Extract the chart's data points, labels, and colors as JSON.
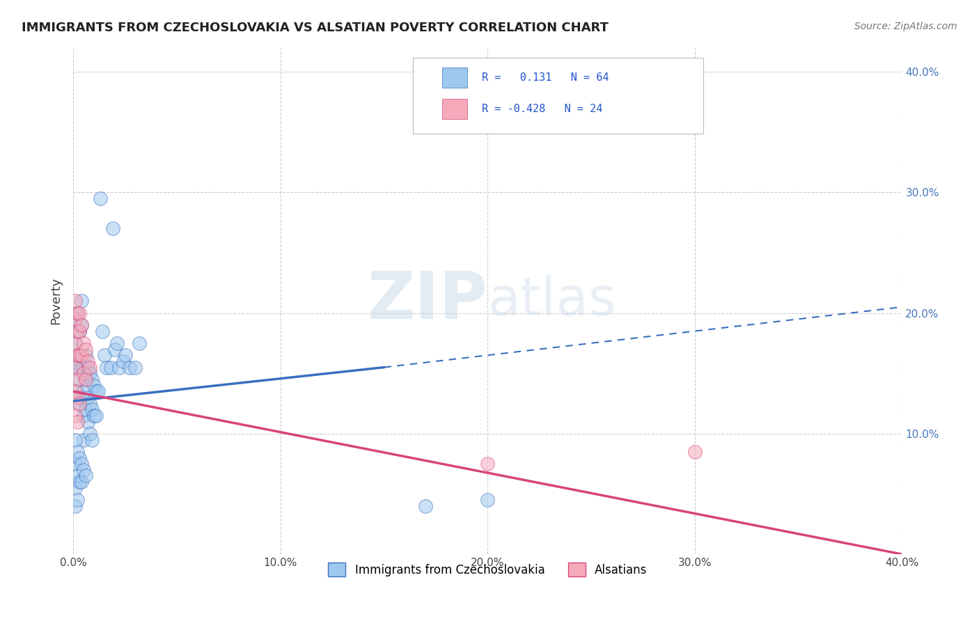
{
  "title": "IMMIGRANTS FROM CZECHOSLOVAKIA VS ALSATIAN POVERTY CORRELATION CHART",
  "source": "Source: ZipAtlas.com",
  "ylabel": "Poverty",
  "xlim": [
    0.0,
    0.4
  ],
  "ylim": [
    0.0,
    0.42
  ],
  "x_ticks": [
    0.0,
    0.1,
    0.2,
    0.3,
    0.4
  ],
  "x_tick_labels": [
    "0.0%",
    "10.0%",
    "20.0%",
    "30.0%",
    "40.0%"
  ],
  "y_ticks": [
    0.1,
    0.2,
    0.3,
    0.4
  ],
  "y_tick_labels": [
    "10.0%",
    "20.0%",
    "30.0%",
    "40.0%"
  ],
  "grid_color": "#cccccc",
  "background_color": "#ffffff",
  "blue_color": "#9EC8EE",
  "pink_color": "#F5AABB",
  "blue_line_color": "#3A6FBF",
  "pink_line_color": "#D94477",
  "blue_scatter": [
    [
      0.001,
      0.195
    ],
    [
      0.001,
      0.175
    ],
    [
      0.001,
      0.155
    ],
    [
      0.002,
      0.2
    ],
    [
      0.002,
      0.185
    ],
    [
      0.002,
      0.155
    ],
    [
      0.002,
      0.135
    ],
    [
      0.003,
      0.185
    ],
    [
      0.003,
      0.165
    ],
    [
      0.003,
      0.145
    ],
    [
      0.003,
      0.125
    ],
    [
      0.004,
      0.21
    ],
    [
      0.004,
      0.19
    ],
    [
      0.004,
      0.155
    ],
    [
      0.004,
      0.13
    ],
    [
      0.005,
      0.155
    ],
    [
      0.005,
      0.135
    ],
    [
      0.005,
      0.115
    ],
    [
      0.005,
      0.095
    ],
    [
      0.006,
      0.165
    ],
    [
      0.006,
      0.145
    ],
    [
      0.006,
      0.12
    ],
    [
      0.007,
      0.155
    ],
    [
      0.007,
      0.13
    ],
    [
      0.007,
      0.11
    ],
    [
      0.008,
      0.15
    ],
    [
      0.008,
      0.125
    ],
    [
      0.008,
      0.1
    ],
    [
      0.009,
      0.145
    ],
    [
      0.009,
      0.12
    ],
    [
      0.009,
      0.095
    ],
    [
      0.01,
      0.14
    ],
    [
      0.01,
      0.115
    ],
    [
      0.011,
      0.135
    ],
    [
      0.011,
      0.115
    ],
    [
      0.012,
      0.135
    ],
    [
      0.013,
      0.295
    ],
    [
      0.014,
      0.185
    ],
    [
      0.015,
      0.165
    ],
    [
      0.016,
      0.155
    ],
    [
      0.018,
      0.155
    ],
    [
      0.019,
      0.27
    ],
    [
      0.02,
      0.17
    ],
    [
      0.021,
      0.175
    ],
    [
      0.022,
      0.155
    ],
    [
      0.024,
      0.16
    ],
    [
      0.025,
      0.165
    ],
    [
      0.027,
      0.155
    ],
    [
      0.03,
      0.155
    ],
    [
      0.032,
      0.175
    ],
    [
      0.001,
      0.095
    ],
    [
      0.001,
      0.075
    ],
    [
      0.001,
      0.055
    ],
    [
      0.001,
      0.04
    ],
    [
      0.002,
      0.085
    ],
    [
      0.002,
      0.065
    ],
    [
      0.002,
      0.045
    ],
    [
      0.003,
      0.08
    ],
    [
      0.003,
      0.06
    ],
    [
      0.004,
      0.075
    ],
    [
      0.004,
      0.06
    ],
    [
      0.005,
      0.07
    ],
    [
      0.006,
      0.065
    ],
    [
      0.17,
      0.04
    ],
    [
      0.2,
      0.045
    ]
  ],
  "pink_scatter": [
    [
      0.001,
      0.21
    ],
    [
      0.001,
      0.195
    ],
    [
      0.001,
      0.175
    ],
    [
      0.001,
      0.155
    ],
    [
      0.002,
      0.2
    ],
    [
      0.002,
      0.185
    ],
    [
      0.002,
      0.165
    ],
    [
      0.002,
      0.145
    ],
    [
      0.003,
      0.2
    ],
    [
      0.003,
      0.185
    ],
    [
      0.003,
      0.165
    ],
    [
      0.004,
      0.19
    ],
    [
      0.004,
      0.165
    ],
    [
      0.005,
      0.175
    ],
    [
      0.005,
      0.15
    ],
    [
      0.006,
      0.17
    ],
    [
      0.006,
      0.145
    ],
    [
      0.007,
      0.16
    ],
    [
      0.008,
      0.155
    ],
    [
      0.001,
      0.135
    ],
    [
      0.001,
      0.115
    ],
    [
      0.002,
      0.13
    ],
    [
      0.002,
      0.11
    ],
    [
      0.003,
      0.125
    ],
    [
      0.2,
      0.075
    ],
    [
      0.3,
      0.085
    ]
  ],
  "blue_line_x": [
    0.0,
    0.4
  ],
  "blue_line_y_start": 0.127,
  "blue_line_y_end_solid": 0.155,
  "blue_line_x_solid_end": 0.15,
  "blue_line_y_end": 0.205,
  "pink_line_x": [
    0.0,
    0.4
  ],
  "pink_line_y_start": 0.135,
  "pink_line_y_end": 0.0
}
